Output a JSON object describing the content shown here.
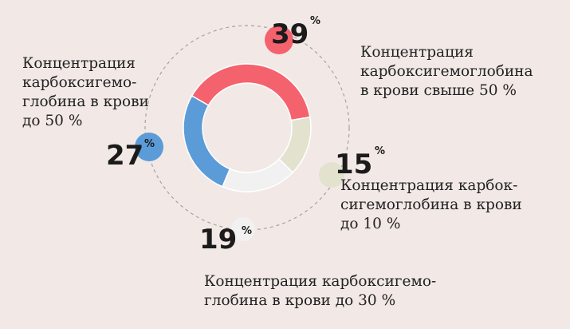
{
  "chart_data": {
    "type": "pie",
    "style": "donut",
    "slices": [
      {
        "value": 39,
        "color": "#f4626e",
        "label_lines": [
          "Концентрация",
          "карбоксигемоглобина",
          "в крови свыше 50 %"
        ]
      },
      {
        "value": 15,
        "color": "#e2e2cf",
        "label_lines": [
          "Концентрация карбок-",
          "сигемоглобина в крови",
          "до 10 %"
        ]
      },
      {
        "value": 19,
        "color": "#f1f1f1",
        "label_lines": [
          "Концентрация карбоксигемо-",
          "глобина в крови до 30 %"
        ]
      },
      {
        "value": 27,
        "color": "#5b9bd8",
        "label_lines": [
          "Концентрация",
          "карбоксигемо-",
          "глобина в крови",
          "до 50 %"
        ]
      }
    ],
    "percent_sign": "%"
  }
}
